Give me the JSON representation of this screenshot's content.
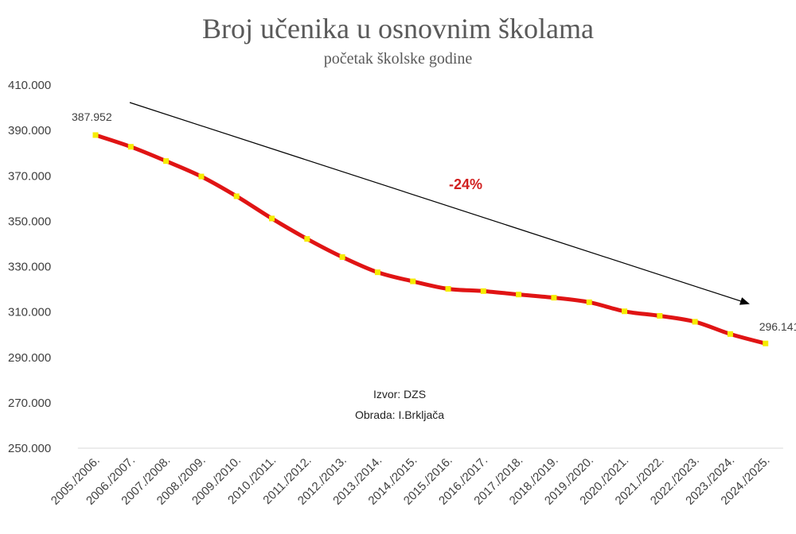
{
  "chart_data": {
    "type": "line",
    "title": "Broj učenika u osnovnim školama",
    "subtitle": "početak školske godine",
    "xlabel": "",
    "ylabel": "",
    "ylim": [
      250000,
      410000
    ],
    "yticks": [
      250000,
      270000,
      290000,
      310000,
      330000,
      350000,
      370000,
      390000,
      410000
    ],
    "ytick_labels": [
      "250.000",
      "270.000",
      "290.000",
      "310.000",
      "330.000",
      "350.000",
      "370.000",
      "390.000",
      "410.000"
    ],
    "grid": false,
    "legend": "none",
    "categories": [
      "2005./2006.",
      "2006./2007.",
      "2007./2008.",
      "2008./2009.",
      "2009./2010.",
      "2010./2011.",
      "2011./2012.",
      "2012./2013.",
      "2013./2014.",
      "2014./2015.",
      "2015./2016.",
      "2016./2017.",
      "2017./2018.",
      "2018./2019.",
      "2019./2020.",
      "2020./2021.",
      "2021./2022.",
      "2022./2023.",
      "2023./2024.",
      "2024./2025."
    ],
    "series": [
      {
        "values": [
          387952,
          382800,
          376500,
          369700,
          361000,
          351200,
          342200,
          334200,
          327500,
          323500,
          320200,
          319200,
          317700,
          316300,
          314300,
          310300,
          308300,
          305700,
          300300,
          296141
        ],
        "line_color": "#e01414",
        "marker_color": "#f5ec00"
      }
    ],
    "data_labels": [
      {
        "index": 0,
        "text": "387.952"
      },
      {
        "index": 19,
        "text": "296.141"
      }
    ],
    "annotations": [
      {
        "text": "-24%",
        "color": "#d11f1f"
      },
      {
        "text": "Izvor: DZS"
      },
      {
        "text": "Obrada: I.Brkljača"
      }
    ],
    "trend_arrow": {
      "color": "#000000"
    }
  }
}
